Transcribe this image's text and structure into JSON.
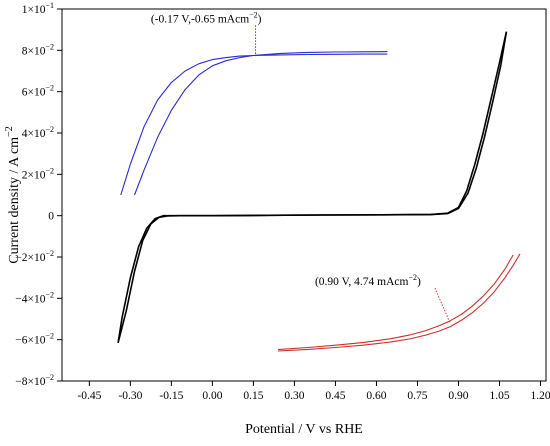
{
  "chart_data": {
    "type": "line",
    "xlabel": "Potential / V vs RHE",
    "ylabel_text": "Current density / A cm",
    "ylabel_sup": "−2",
    "xlim": [
      -0.55,
      1.22
    ],
    "ylim": [
      -0.08,
      0.1
    ],
    "x_ticks": [
      {
        "value": -0.45,
        "label": "-0.45"
      },
      {
        "value": -0.3,
        "label": "-0.30"
      },
      {
        "value": -0.15,
        "label": "-0.15"
      },
      {
        "value": 0.0,
        "label": "0.00"
      },
      {
        "value": 0.15,
        "label": "0.15"
      },
      {
        "value": 0.3,
        "label": "0.30"
      },
      {
        "value": 0.45,
        "label": "0.45"
      },
      {
        "value": 0.6,
        "label": "0.60"
      },
      {
        "value": 0.75,
        "label": "0.75"
      },
      {
        "value": 0.9,
        "label": "0.90"
      },
      {
        "value": 1.05,
        "label": "1.05"
      },
      {
        "value": 1.2,
        "label": "1.20"
      }
    ],
    "y_ticks": [
      {
        "value": 0.1,
        "mant": "1",
        "exp": "−1"
      },
      {
        "value": 0.08,
        "mant": "8",
        "exp": "−2"
      },
      {
        "value": 0.06,
        "mant": "6",
        "exp": "−2"
      },
      {
        "value": 0.04,
        "mant": "4",
        "exp": "−2"
      },
      {
        "value": 0.02,
        "mant": "2",
        "exp": "−2"
      },
      {
        "value": 0.0,
        "mant": "0",
        "exp": ""
      },
      {
        "value": -0.02,
        "mant": "−2",
        "exp": "−2"
      },
      {
        "value": -0.04,
        "mant": "−4",
        "exp": "−2"
      },
      {
        "value": -0.06,
        "mant": "−6",
        "exp": "−2"
      },
      {
        "value": -0.08,
        "mant": "−8",
        "exp": "−2"
      }
    ],
    "series": [
      {
        "color": "#000000",
        "style": "main-cv-forward",
        "x": [
          -0.345,
          -0.33,
          -0.3,
          -0.27,
          -0.24,
          -0.21,
          -0.18,
          -0.15,
          -0.1,
          0.0,
          0.2,
          0.4,
          0.6,
          0.8,
          0.86,
          0.9,
          0.93,
          0.96,
          0.99,
          1.02,
          1.05,
          1.075
        ],
        "y": [
          -0.0615,
          -0.049,
          -0.03,
          -0.015,
          -0.006,
          -0.0015,
          0.0,
          0.0,
          0.0,
          0.0,
          0.0002,
          0.0003,
          0.0004,
          0.0006,
          0.0012,
          0.004,
          0.012,
          0.025,
          0.04,
          0.057,
          0.074,
          0.089
        ]
      },
      {
        "color": "#000000",
        "style": "main-cv-reverse",
        "x": [
          -0.345,
          -0.315,
          -0.285,
          -0.255,
          -0.225,
          -0.195,
          -0.165,
          -0.12,
          0.0,
          0.2,
          0.4,
          0.6,
          0.8,
          0.86,
          0.9,
          0.935,
          0.965,
          0.995,
          1.025,
          1.055,
          1.075
        ],
        "y": [
          -0.0615,
          -0.046,
          -0.027,
          -0.012,
          -0.004,
          -0.0008,
          -0.0001,
          0.0,
          0.0,
          0.0002,
          0.0003,
          0.0004,
          0.0005,
          0.001,
          0.0035,
          0.011,
          0.023,
          0.038,
          0.055,
          0.073,
          0.089
        ]
      },
      {
        "color": "#2a2ad0",
        "style": "blue-inset-outer",
        "x": [
          -0.335,
          -0.3,
          -0.25,
          -0.2,
          -0.15,
          -0.1,
          -0.05,
          0.0,
          0.05,
          0.1,
          0.15,
          0.25,
          0.35,
          0.45,
          0.55,
          0.64
        ],
        "y": [
          0.01,
          0.025,
          0.043,
          0.056,
          0.0645,
          0.07,
          0.0735,
          0.0755,
          0.0765,
          0.0772,
          0.0775,
          0.0778,
          0.078,
          0.0781,
          0.0782,
          0.0782
        ]
      },
      {
        "color": "#2a2ad0",
        "style": "blue-inset-inner",
        "x": [
          -0.285,
          -0.25,
          -0.2,
          -0.15,
          -0.1,
          -0.05,
          0.0,
          0.05,
          0.1,
          0.15,
          0.25,
          0.35,
          0.45,
          0.55,
          0.64
        ],
        "y": [
          0.01,
          0.022,
          0.038,
          0.051,
          0.061,
          0.068,
          0.0725,
          0.075,
          0.0765,
          0.0775,
          0.0785,
          0.079,
          0.0792,
          0.0793,
          0.0794
        ]
      },
      {
        "color": "#c83030",
        "style": "red-inset-outer",
        "x": [
          0.24,
          0.35,
          0.45,
          0.55,
          0.65,
          0.72,
          0.78,
          0.83,
          0.87,
          0.91,
          0.95,
          0.99,
          1.03,
          1.07,
          1.1,
          1.125
        ],
        "y": [
          -0.0655,
          -0.0647,
          -0.0638,
          -0.0627,
          -0.0612,
          -0.0597,
          -0.0578,
          -0.0558,
          -0.0537,
          -0.0507,
          -0.047,
          -0.0425,
          -0.037,
          -0.03,
          -0.024,
          -0.0185
        ]
      },
      {
        "color": "#c83030",
        "style": "red-inset-inner",
        "x": [
          0.24,
          0.35,
          0.45,
          0.55,
          0.65,
          0.72,
          0.78,
          0.83,
          0.87,
          0.91,
          0.95,
          0.99,
          1.03,
          1.07,
          1.1
        ],
        "y": [
          -0.0648,
          -0.0638,
          -0.0627,
          -0.0614,
          -0.0596,
          -0.0578,
          -0.0556,
          -0.0532,
          -0.0508,
          -0.0478,
          -0.0438,
          -0.039,
          -0.0332,
          -0.0258,
          -0.019
        ]
      }
    ],
    "annotations": [
      {
        "text": "(-0.17 V,-0.65 mAcm",
        "sup": "−2",
        "close": ")",
        "color": "#2a2ad0",
        "label_at": [
          -0.225,
          0.0935
        ],
        "point_at": [
          0.158,
          0.0772
        ]
      },
      {
        "text": "(0.90 V, 4.74 mAcm",
        "sup": "−2",
        "close": ")",
        "color": "#d02a2a",
        "label_at": [
          0.375,
          -0.0335
        ],
        "point_at": [
          0.87,
          -0.0522
        ]
      }
    ]
  }
}
